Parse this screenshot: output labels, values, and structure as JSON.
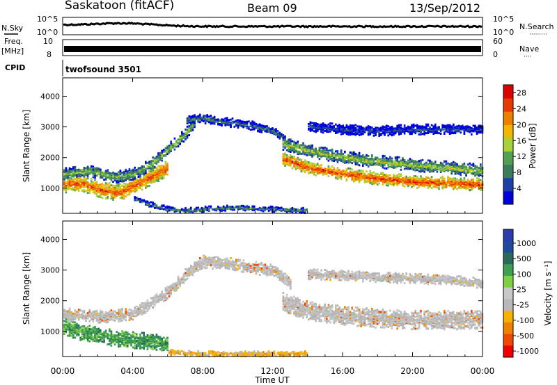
{
  "header": {
    "station": "Saskatoon (fitACF)",
    "beam": "Beam 09",
    "date": "13/Sep/2012"
  },
  "top_panels": {
    "nsky_label": "N.Sky",
    "nsky_tick_hi": "10^5",
    "nsky_tick_lo": "10^0",
    "nsearch_label": "N.Search",
    "nsearch_dots": "·········",
    "freq_label": "Freq.",
    "freq_unit": "[MHz]",
    "freq_tick_hi": "10",
    "freq_tick_lo": "8",
    "nave_label": "Nave",
    "nave_dots": "····",
    "nave_tick_hi": "60",
    "nave_tick_lo": "0",
    "cpid_label": "CPID",
    "cpid_value": "twofsound 3501"
  },
  "colors": {
    "power_scale": [
      "#0000dd",
      "#1c3fa8",
      "#3a7d5a",
      "#52a052",
      "#a8d23c",
      "#f5b400",
      "#ee7e00",
      "#e83a00",
      "#dd0000"
    ],
    "velocity_scale": [
      "#ee0000",
      "#f04a00",
      "#f08000",
      "#f5b000",
      "#b8b8b8",
      "#c8c8c8",
      "#7fd040",
      "#3ca050",
      "#2a6a5a",
      "#204aa0",
      "#2a3cb0"
    ]
  },
  "chart_data": [
    {
      "type": "heatmap",
      "name": "power",
      "xlabel": "Time UT",
      "ylabel": "Slant Range [km]",
      "x_tick_labels": [
        "00:00",
        "04:00",
        "08:00",
        "12:00",
        "16:00",
        "20:00",
        "00:00"
      ],
      "xlim_hours": [
        0,
        24
      ],
      "ylim_km": [
        180,
        4600
      ],
      "y_tick_labels": [
        "1000",
        "2000",
        "3000",
        "4000"
      ],
      "colorbar_label": "Power [dB]",
      "colorbar_ticks": [
        "4",
        "8",
        "12",
        "16",
        "20",
        "24",
        "28"
      ],
      "colorbar_range": [
        0,
        30
      ],
      "bands": [
        {
          "t": [
            0,
            1,
            2,
            3,
            3.5,
            4,
            5,
            6
          ],
          "r": [
            1150,
            1200,
            1000,
            900,
            950,
            1100,
            1400,
            1700
          ],
          "w": 500,
          "level": 24
        },
        {
          "t": [
            0,
            1.5,
            3,
            4,
            5,
            6,
            7,
            7.5
          ],
          "r": [
            1500,
            1600,
            1400,
            1500,
            1800,
            2300,
            2800,
            3200
          ],
          "w": 350,
          "level": 14
        },
        {
          "t": [
            7,
            8,
            9,
            10,
            11,
            12,
            12.5,
            13
          ],
          "r": [
            3250,
            3300,
            3200,
            3150,
            3050,
            2900,
            2700,
            2400
          ],
          "w": 250,
          "level": 9
        },
        {
          "t": [
            12.5,
            14,
            16,
            18,
            20,
            22,
            24
          ],
          "r": [
            2000,
            1700,
            1500,
            1350,
            1250,
            1200,
            1150
          ],
          "w": 400,
          "level": 25
        },
        {
          "t": [
            12.5,
            14,
            16,
            18,
            20,
            22,
            24
          ],
          "r": [
            2500,
            2250,
            2050,
            1900,
            1800,
            1700,
            1600
          ],
          "w": 400,
          "level": 15
        },
        {
          "t": [
            14,
            16,
            18,
            20,
            22,
            24
          ],
          "r": [
            3050,
            2950,
            2900,
            2950,
            2950,
            2950
          ],
          "w": 300,
          "level": 6
        },
        {
          "t": [
            4,
            5,
            6,
            7,
            8,
            10,
            12,
            14
          ],
          "r": [
            700,
            500,
            350,
            300,
            350,
            400,
            350,
            300
          ],
          "w": 150,
          "level": 10
        }
      ]
    },
    {
      "type": "heatmap",
      "name": "velocity",
      "xlabel": "Time UT",
      "ylabel": "Slant Range [km]",
      "x_tick_labels": [
        "00:00",
        "04:00",
        "08:00",
        "12:00",
        "16:00",
        "20:00",
        "00:00"
      ],
      "xlim_hours": [
        0,
        24
      ],
      "ylim_km": [
        180,
        4600
      ],
      "y_tick_labels": [
        "1000",
        "2000",
        "3000",
        "4000"
      ],
      "colorbar_label": "Velocity [m s⁻¹]",
      "colorbar_ticks": [
        "1000",
        "500",
        "100",
        "25",
        "-25",
        "-100",
        "-500",
        "-1000"
      ],
      "bands": [
        {
          "t": [
            0,
            1,
            2,
            3,
            4,
            5,
            6
          ],
          "r": [
            1200,
            1000,
            900,
            800,
            750,
            700,
            600
          ],
          "w": 500,
          "level": 1
        },
        {
          "t": [
            0,
            2,
            4,
            6,
            7,
            8,
            10,
            12,
            13
          ],
          "r": [
            1600,
            1500,
            1600,
            2300,
            2900,
            3300,
            3200,
            3000,
            2600
          ],
          "w": 400,
          "level": 0
        },
        {
          "t": [
            12.5,
            14,
            16,
            18,
            20,
            22,
            24
          ],
          "r": [
            2000,
            1700,
            1550,
            1450,
            1400,
            1400,
            1400
          ],
          "w": 600,
          "level": 0
        },
        {
          "t": [
            14,
            16,
            18,
            20,
            22,
            24
          ],
          "r": [
            2900,
            2850,
            2800,
            2750,
            2700,
            2600
          ],
          "w": 300,
          "level": 0
        },
        {
          "t": [
            6,
            8,
            10,
            12,
            14
          ],
          "r": [
            350,
            300,
            300,
            300,
            300
          ],
          "w": 150,
          "level": -1
        }
      ]
    }
  ]
}
